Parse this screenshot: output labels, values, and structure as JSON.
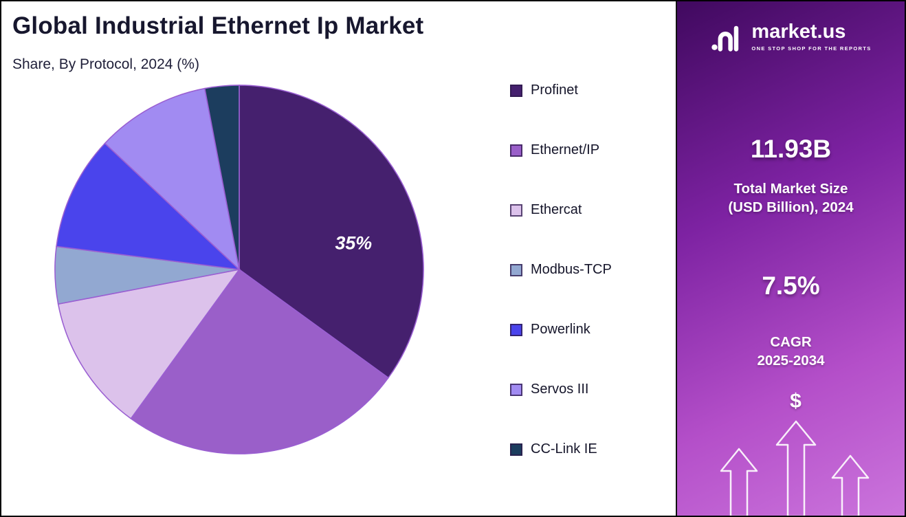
{
  "header": {
    "title": "Global Industrial Ethernet Ip Market",
    "subtitle": "Share, By Protocol, 2024 (%)"
  },
  "chart_data": {
    "type": "pie",
    "title": "Global Industrial Ethernet Ip Market",
    "subtitle": "Share, By Protocol, 2024 (%)",
    "unit": "%",
    "labels": [
      "Profinet",
      "Ethernet/IP",
      "Ethercat",
      "Modbus-TCP",
      "Powerlink",
      "Servos III",
      "CC-Link IE"
    ],
    "values": [
      35,
      25,
      12,
      5,
      10,
      10,
      3
    ],
    "colors": [
      "#45206e",
      "#9a5fc9",
      "#dcc2eb",
      "#92a8d1",
      "#4a44ec",
      "#a18bf2",
      "#1c3d5e"
    ],
    "start_angle_deg": 0,
    "direction": "clockwise",
    "slice_border_color": "#9a5fd2",
    "legend_position": "right",
    "data_labels": [
      {
        "slice": "Profinet",
        "text": "35%",
        "angle_deg": 80,
        "radius_frac": 0.63
      }
    ]
  },
  "sidebar": {
    "brand": "market.us",
    "tagline": "ONE STOP SHOP FOR THE REPORTS",
    "market_size_value": "11.93B",
    "market_size_label_line1": "Total Market Size",
    "market_size_label_line2": "(USD Billion), 2024",
    "cagr_value": "7.5%",
    "cagr_line1": "CAGR",
    "cagr_line2": "2025-2034",
    "dollar_symbol": "$",
    "gradient_top": "#40095f",
    "gradient_bottom": "#cb74dc"
  }
}
